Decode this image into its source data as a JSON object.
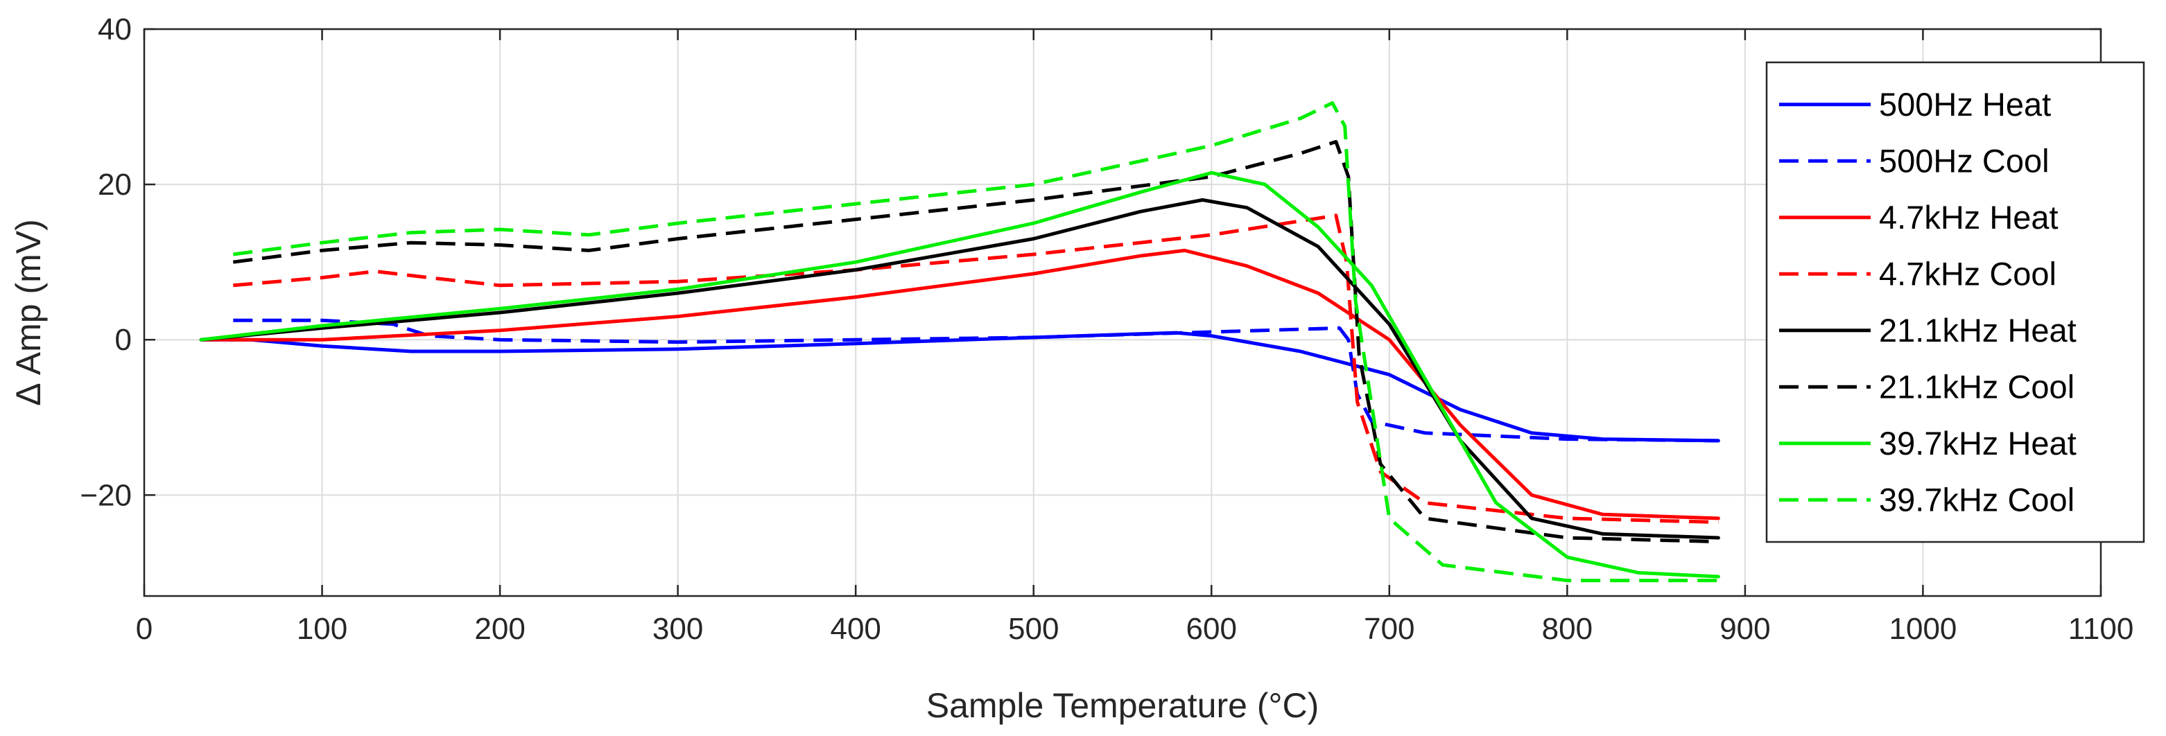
{
  "chart_data": {
    "type": "line",
    "title": "",
    "xlabel": "Sample Temperature (°C)",
    "ylabel": "Δ Amp (mV)",
    "xlim": [
      0,
      1100
    ],
    "ylim": [
      -33,
      40
    ],
    "xticks": [
      0,
      100,
      200,
      300,
      400,
      500,
      600,
      700,
      800,
      900,
      1000,
      1100
    ],
    "yticks": [
      -20,
      0,
      20,
      40
    ],
    "ytick_labels": [
      "−20",
      "0",
      "20",
      "40"
    ],
    "grid": true,
    "legend_position": "right",
    "series": [
      {
        "name": "500Hz Heat",
        "color": "#0000ff",
        "style": "solid",
        "x": [
          32,
          60,
          100,
          150,
          200,
          300,
          400,
          500,
          580,
          600,
          650,
          700,
          740,
          780,
          820,
          885
        ],
        "y": [
          0,
          0,
          -0.8,
          -1.5,
          -1.5,
          -1.2,
          -0.5,
          0.3,
          0.9,
          0.5,
          -1.5,
          -4.5,
          -9,
          -12,
          -12.8,
          -13
        ]
      },
      {
        "name": "500Hz Cool",
        "color": "#0000ff",
        "style": "dash",
        "x": [
          50,
          100,
          140,
          160,
          200,
          300,
          400,
          500,
          600,
          672,
          677,
          682,
          690,
          720,
          800,
          885
        ],
        "y": [
          2.5,
          2.5,
          2,
          0.5,
          0,
          -0.3,
          0,
          0.3,
          1,
          1.5,
          0,
          -7,
          -10.5,
          -12,
          -12.8,
          -13
        ]
      },
      {
        "name": "4.7kHz Heat",
        "color": "#ff0000",
        "style": "solid",
        "x": [
          32,
          100,
          200,
          300,
          400,
          500,
          560,
          585,
          620,
          660,
          700,
          740,
          780,
          820,
          885
        ],
        "y": [
          0,
          0,
          1.2,
          3,
          5.5,
          8.5,
          10.8,
          11.5,
          9.5,
          6,
          0,
          -11,
          -20,
          -22.5,
          -23
        ]
      },
      {
        "name": "4.7kHz Cool",
        "color": "#ff0000",
        "style": "dash",
        "x": [
          50,
          100,
          130,
          160,
          200,
          300,
          400,
          500,
          600,
          670,
          676,
          682,
          695,
          720,
          800,
          885
        ],
        "y": [
          7,
          8,
          8.8,
          8,
          7,
          7.5,
          9,
          11,
          13.5,
          16,
          10,
          -8,
          -17,
          -21,
          -23,
          -23.5
        ]
      },
      {
        "name": "21.1kHz Heat",
        "color": "#000000",
        "style": "solid",
        "x": [
          32,
          100,
          200,
          300,
          400,
          500,
          560,
          595,
          620,
          660,
          700,
          740,
          780,
          820,
          885
        ],
        "y": [
          0,
          1.5,
          3.5,
          6,
          9,
          13,
          16.5,
          18,
          17,
          12,
          2,
          -13,
          -23,
          -25,
          -25.5
        ]
      },
      {
        "name": "21.1kHz Cool",
        "color": "#000000",
        "style": "dash",
        "x": [
          50,
          100,
          150,
          200,
          250,
          300,
          400,
          500,
          600,
          650,
          670,
          677,
          683,
          695,
          720,
          800,
          885
        ],
        "y": [
          10,
          11.5,
          12.5,
          12.2,
          11.5,
          13,
          15.5,
          18,
          21,
          24,
          25.5,
          21,
          -2,
          -16,
          -23,
          -25.5,
          -26
        ]
      },
      {
        "name": "39.7kHz Heat",
        "color": "#00ee00",
        "style": "solid",
        "x": [
          32,
          100,
          200,
          300,
          400,
          500,
          560,
          600,
          630,
          660,
          690,
          720,
          760,
          800,
          840,
          885
        ],
        "y": [
          0,
          1.8,
          4,
          6.5,
          10,
          15,
          19,
          21.5,
          20,
          14.5,
          7,
          -5,
          -21,
          -28,
          -30,
          -30.5
        ]
      },
      {
        "name": "39.7kHz Cool",
        "color": "#00ee00",
        "style": "dash",
        "x": [
          50,
          100,
          150,
          200,
          250,
          300,
          400,
          500,
          600,
          650,
          668,
          675,
          681,
          700,
          730,
          800,
          885
        ],
        "y": [
          11,
          12.5,
          13.8,
          14.2,
          13.5,
          15,
          17.5,
          20,
          25,
          28.5,
          30.5,
          27.5,
          5,
          -23,
          -29,
          -31,
          -31
        ]
      }
    ]
  }
}
